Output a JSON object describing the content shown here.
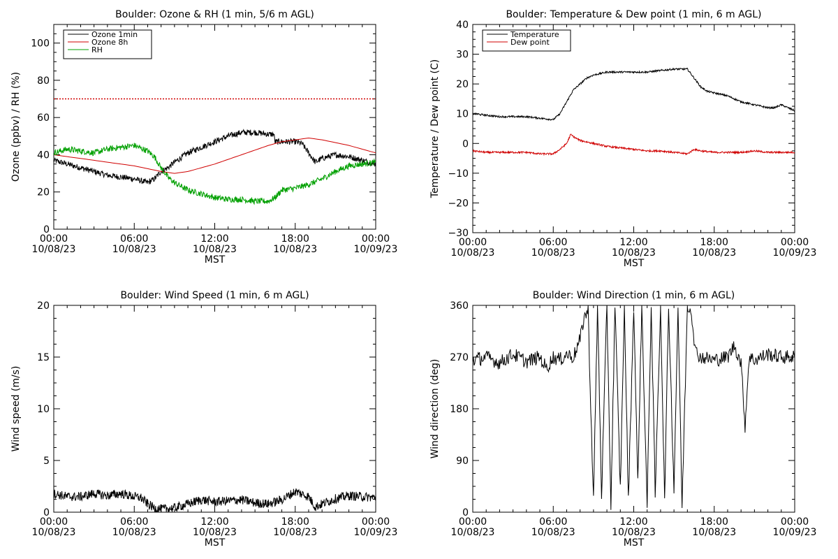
{
  "colors": {
    "axis": "#000000",
    "ozone": "#000000",
    "ozone8h": "#d00000",
    "rh": "#00a000",
    "temp": "#000000",
    "dew": "#d00000",
    "threshold": "#d00000"
  },
  "chart_data": [
    {
      "id": "ozone",
      "type": "line",
      "title": "Boulder: Ozone & RH (1 min, 5/6 m AGL)",
      "xlabel": "MST",
      "ylabel": "Ozone (ppbv) / RH (%)",
      "xlim": [
        0,
        24
      ],
      "ylim": [
        0,
        110
      ],
      "ytick_step": 20,
      "ytick_labels": [
        "0",
        "20",
        "40",
        "60",
        "80",
        "100"
      ],
      "xtick_labels": [
        [
          "00:00",
          "10/08/23"
        ],
        [
          "06:00",
          "10/08/23"
        ],
        [
          "12:00",
          "10/08/23"
        ],
        [
          "18:00",
          "10/08/23"
        ],
        [
          "00:00",
          "10/09/23"
        ]
      ],
      "grid": false,
      "legend": "top-left",
      "reference_line": {
        "y": 70,
        "style": "dotted",
        "color": "#d00000"
      },
      "series": [
        {
          "name": "Ozone 1min",
          "color": "#000000",
          "x": [
            0,
            1,
            2,
            3,
            4,
            5,
            6,
            7,
            7.5,
            8,
            8.5,
            9,
            10,
            11,
            12,
            13,
            14,
            15,
            16,
            16.4,
            16.5,
            17,
            18,
            18.5,
            19,
            19.5,
            20,
            21,
            22,
            23,
            24
          ],
          "y": [
            37,
            35,
            33,
            31,
            29,
            28,
            27,
            25,
            27,
            31,
            33,
            36,
            41,
            44,
            47,
            50,
            52,
            52,
            51,
            51,
            47,
            47,
            47,
            46,
            41,
            36,
            38,
            40,
            39,
            37,
            35
          ]
        },
        {
          "name": "Ozone 8h",
          "color": "#d00000",
          "x": [
            0,
            2,
            4,
            6,
            8,
            9,
            10,
            12,
            14,
            16,
            17,
            18,
            19,
            20,
            22,
            24
          ],
          "y": [
            40,
            38,
            36,
            34,
            31,
            30,
            31,
            35,
            40,
            45,
            47,
            48,
            49,
            48,
            45,
            41
          ]
        },
        {
          "name": "RH",
          "color": "#00a000",
          "x": [
            0,
            1,
            2,
            3,
            4,
            5,
            6,
            7,
            7.5,
            8,
            8.5,
            9,
            10,
            11,
            12,
            13,
            14,
            15,
            16,
            16.5,
            17,
            18,
            19,
            20,
            21,
            22,
            23,
            24
          ],
          "y": [
            41,
            43,
            42,
            41,
            43,
            44,
            45,
            42,
            39,
            33,
            28,
            25,
            21,
            19,
            17,
            16,
            16,
            15,
            15,
            17,
            21,
            22,
            24,
            27,
            31,
            34,
            35,
            36
          ]
        }
      ]
    },
    {
      "id": "temp",
      "type": "line",
      "title": "Boulder: Temperature & Dew point (1 min, 6 m AGL)",
      "xlabel": "MST",
      "ylabel": "Temperature / Dew point (C)",
      "xlim": [
        0,
        24
      ],
      "ylim": [
        -30,
        40
      ],
      "ytick_step": 10,
      "ytick_labels": [
        "−30",
        "−20",
        "−10",
        "0",
        "10",
        "20",
        "30",
        "40"
      ],
      "xtick_labels": [
        [
          "00:00",
          "10/08/23"
        ],
        [
          "06:00",
          "10/08/23"
        ],
        [
          "12:00",
          "10/08/23"
        ],
        [
          "18:00",
          "10/08/23"
        ],
        [
          "00:00",
          "10/09/23"
        ]
      ],
      "grid": false,
      "legend": "top-left",
      "series": [
        {
          "name": "Temperature",
          "color": "#000000",
          "x": [
            0,
            1,
            2,
            3,
            4,
            5,
            6,
            6.5,
            7,
            7.5,
            8,
            8.5,
            9,
            10,
            11,
            12,
            13,
            14,
            15,
            16,
            16.5,
            17,
            17.5,
            18,
            19,
            20,
            21,
            22,
            22.5,
            23,
            24
          ],
          "y": [
            10,
            9.5,
            9,
            9,
            9,
            8.5,
            8,
            10,
            14,
            18,
            20,
            22,
            23,
            24,
            24,
            24,
            24,
            24.5,
            25,
            25,
            22,
            19,
            17.5,
            17,
            16,
            14,
            13,
            12,
            12,
            13,
            11
          ]
        },
        {
          "name": "Dew point",
          "color": "#d00000",
          "x": [
            0,
            1,
            2,
            3,
            4,
            5,
            6,
            6.5,
            7,
            7.3,
            7.6,
            8,
            9,
            10,
            11,
            12,
            13,
            14,
            15,
            16,
            16.5,
            17,
            18,
            19,
            20,
            21,
            22,
            23,
            24
          ],
          "y": [
            -2.5,
            -3,
            -3,
            -3,
            -3,
            -3.5,
            -3.5,
            -2,
            0,
            3,
            2,
            1,
            0,
            -1,
            -1.5,
            -2,
            -2.5,
            -2.5,
            -3,
            -3.5,
            -2,
            -2.5,
            -3,
            -3,
            -3,
            -2.5,
            -3,
            -3,
            -3
          ]
        }
      ]
    },
    {
      "id": "wind",
      "type": "line",
      "title": "Boulder: Wind Speed (1 min, 6 m AGL)",
      "xlabel": "MST",
      "ylabel": "Wind speed (m/s)",
      "xlim": [
        0,
        24
      ],
      "ylim": [
        0,
        20
      ],
      "ytick_step": 5,
      "ytick_labels": [
        "0",
        "5",
        "10",
        "15",
        "20"
      ],
      "xtick_labels": [
        [
          "00:00",
          "10/08/23"
        ],
        [
          "06:00",
          "10/08/23"
        ],
        [
          "12:00",
          "10/08/23"
        ],
        [
          "18:00",
          "10/08/23"
        ],
        [
          "00:00",
          "10/09/23"
        ]
      ],
      "grid": false,
      "series": [
        {
          "color": "#000000",
          "x": [
            0,
            1,
            2,
            3,
            4,
            5,
            6,
            6.5,
            7,
            7.5,
            8,
            9,
            10,
            11,
            12,
            13,
            14,
            15,
            16,
            17,
            18,
            19,
            19.5,
            20,
            21,
            22,
            23,
            24
          ],
          "y": [
            1.8,
            1.5,
            1.5,
            1.8,
            1.6,
            1.8,
            1.5,
            1.4,
            0.8,
            0.4,
            0.3,
            0.4,
            0.8,
            1.2,
            1.0,
            1.1,
            1.2,
            0.9,
            0.8,
            1.2,
            2.0,
            1.5,
            0.5,
            0.8,
            1.3,
            1.6,
            1.5,
            1.4
          ]
        }
      ]
    },
    {
      "id": "wdir",
      "type": "line",
      "title": "Boulder: Wind Direction (1 min, 6 m AGL)",
      "xlabel": "MST",
      "ylabel": "Wind direction (deg)",
      "xlim": [
        0,
        24
      ],
      "ylim": [
        0,
        360
      ],
      "ytick_step": 90,
      "ytick_labels": [
        "0",
        "90",
        "180",
        "270",
        "360"
      ],
      "xtick_labels": [
        [
          "00:00",
          "10/08/23"
        ],
        [
          "06:00",
          "10/08/23"
        ],
        [
          "12:00",
          "10/08/23"
        ],
        [
          "18:00",
          "10/08/23"
        ],
        [
          "00:00",
          "10/09/23"
        ]
      ],
      "grid": false,
      "series": [
        {
          "color": "#000000",
          "x": [
            0,
            1,
            2,
            3,
            4,
            5,
            5.5,
            6,
            6.5,
            7,
            7.5,
            8,
            8.3,
            8.6,
            8.8,
            9,
            9.3,
            9.6,
            10,
            10.3,
            10.6,
            11,
            11.3,
            11.6,
            12,
            12.3,
            12.6,
            13,
            13.3,
            13.6,
            14,
            14.3,
            14.6,
            15,
            15.3,
            15.6,
            16,
            16.3,
            16.6,
            17,
            18,
            19,
            19.5,
            20,
            20.3,
            20.6,
            21,
            22,
            23,
            24
          ],
          "y": [
            265,
            270,
            260,
            275,
            262,
            270,
            250,
            270,
            265,
            275,
            270,
            300,
            340,
            350,
            180,
            20,
            360,
            30,
            360,
            10,
            360,
            40,
            360,
            20,
            360,
            50,
            360,
            10,
            360,
            30,
            360,
            20,
            360,
            40,
            360,
            10,
            360,
            350,
            280,
            270,
            265,
            270,
            290,
            260,
            150,
            270,
            265,
            275,
            270,
            270
          ]
        }
      ]
    }
  ]
}
